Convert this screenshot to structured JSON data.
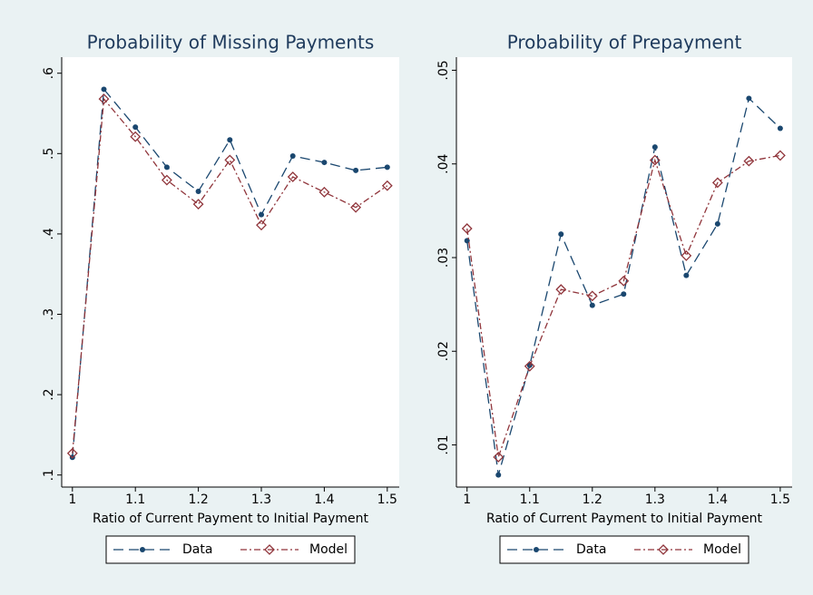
{
  "chart_data": [
    {
      "type": "line",
      "title": "Probability of Missing Payments",
      "x_label": "Ratio of Current Payment to Initial Payment",
      "x": [
        1,
        1.05,
        1.1,
        1.15,
        1.2,
        1.25,
        1.3,
        1.35,
        1.4,
        1.45,
        1.5
      ],
      "series": [
        {
          "name": "Data",
          "color": "#1a476f",
          "marker": "circle",
          "dash": "long-dash",
          "values": [
            0.122,
            0.58,
            0.533,
            0.483,
            0.453,
            0.517,
            0.424,
            0.497,
            0.489,
            0.479,
            0.483
          ]
        },
        {
          "name": "Model",
          "color": "#90353b",
          "marker": "diamond",
          "dash": "dash-dot",
          "values": [
            0.127,
            0.568,
            0.521,
            0.467,
            0.437,
            0.492,
            0.411,
            0.471,
            0.452,
            0.433,
            0.46
          ]
        }
      ],
      "xlim": [
        0.983,
        1.519
      ],
      "xticks": [
        1,
        1.1,
        1.2,
        1.3,
        1.4,
        1.5
      ],
      "ylim": [
        0.085,
        0.62
      ],
      "yticks": [
        {
          "value": 0.1,
          "label": ".1"
        },
        {
          "value": 0.2,
          "label": ".2"
        },
        {
          "value": 0.3,
          "label": ".3"
        },
        {
          "value": 0.4,
          "label": ".4"
        },
        {
          "value": 0.5,
          "label": ".5"
        },
        {
          "value": 0.6,
          "label": ".6"
        }
      ],
      "legend": "bottom"
    },
    {
      "type": "line",
      "title": "Probability of Prepayment",
      "x_label": "Ratio of Current Payment to Initial Payment",
      "x": [
        1,
        1.05,
        1.1,
        1.15,
        1.2,
        1.25,
        1.3,
        1.35,
        1.4,
        1.45,
        1.5
      ],
      "series": [
        {
          "name": "Data",
          "color": "#1a476f",
          "marker": "circle",
          "dash": "long-dash",
          "values": [
            0.0318,
            0.0068,
            0.0185,
            0.0325,
            0.0249,
            0.0261,
            0.0418,
            0.0281,
            0.0336,
            0.047,
            0.0438
          ]
        },
        {
          "name": "Model",
          "color": "#90353b",
          "marker": "diamond",
          "dash": "dash-dot",
          "values": [
            0.0331,
            0.0087,
            0.0184,
            0.0266,
            0.0259,
            0.0275,
            0.0404,
            0.0302,
            0.038,
            0.0403,
            0.0409
          ]
        }
      ],
      "xlim": [
        0.983,
        1.519
      ],
      "xticks": [
        1,
        1.1,
        1.2,
        1.3,
        1.4,
        1.5
      ],
      "ylim": [
        0.0055,
        0.0514
      ],
      "yticks": [
        {
          "value": 0.01,
          "label": ".01"
        },
        {
          "value": 0.02,
          "label": ".02"
        },
        {
          "value": 0.03,
          "label": ".03"
        },
        {
          "value": 0.04,
          "label": ".04"
        },
        {
          "value": 0.05,
          "label": ".05"
        }
      ],
      "legend": "bottom"
    }
  ]
}
